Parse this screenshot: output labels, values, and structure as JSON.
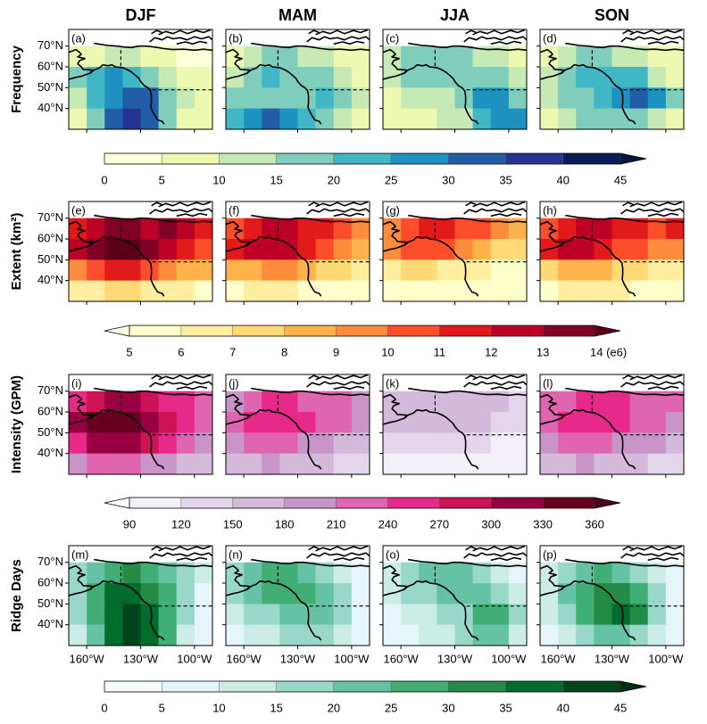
{
  "chart_data": {
    "type": "map-grid",
    "columns": [
      "DJF",
      "MAM",
      "JJA",
      "SON"
    ],
    "rows": [
      "Frequency",
      "Extent (km²)",
      "Intensity (GPM)",
      "Ridge Days"
    ],
    "xlim": [
      -170,
      -90
    ],
    "ylim": [
      30,
      78
    ],
    "xticks": [
      {
        "value": -160,
        "label": "160°W"
      },
      {
        "value": -130,
        "label": "130°W"
      },
      {
        "value": -100,
        "label": "100°W"
      }
    ],
    "yticks": [
      {
        "value": 70,
        "label": "70°N"
      },
      {
        "value": 60,
        "label": "60°N"
      },
      {
        "value": 50,
        "label": "50°N"
      },
      {
        "value": 40,
        "label": "40°N"
      }
    ],
    "lon": [
      -165,
      -155,
      -145,
      -135,
      -125,
      -115,
      -105,
      -95
    ],
    "lat": [
      65,
      55,
      45,
      35
    ],
    "colorbars": [
      {
        "ticks": [
          0,
          5,
          10,
          15,
          20,
          25,
          30,
          35,
          40,
          45
        ],
        "extend": "max",
        "colors": [
          "#ffffd9",
          "#edf8b1",
          "#c7e9b4",
          "#7fcdbb",
          "#41b6c4",
          "#1d91c0",
          "#225ea8",
          "#253494",
          "#081d58"
        ],
        "over": "#061440"
      },
      {
        "ticks": [
          5,
          6,
          7,
          8,
          9,
          10,
          11,
          12,
          13,
          {
            "value": 14,
            "label": "14 (e6)"
          }
        ],
        "extend": "both",
        "colors": [
          "#ffffcc",
          "#ffeda0",
          "#fed976",
          "#feb24c",
          "#fd8d3c",
          "#fc4e2a",
          "#e31a1c",
          "#bd0026",
          "#800026"
        ],
        "under": "#ffffe8",
        "over": "#5c0019"
      },
      {
        "ticks": [
          90,
          120,
          150,
          180,
          210,
          240,
          270,
          300,
          330,
          360
        ],
        "extend": "both",
        "colors": [
          "#f4f0f7",
          "#e3d6ea",
          "#d4b9da",
          "#c994c7",
          "#df65b0",
          "#e7298a",
          "#ce1256",
          "#980043",
          "#67001f"
        ],
        "under": "#ffffff",
        "over": "#4a0016"
      },
      {
        "ticks": [
          0,
          5,
          10,
          15,
          20,
          25,
          30,
          35,
          40,
          45
        ],
        "extend": "max",
        "colors": [
          "#f7fcfd",
          "#e5f5f9",
          "#ccece6",
          "#99d8c9",
          "#66c2a4",
          "#41ae76",
          "#238b45",
          "#006d2c",
          "#00441b"
        ],
        "over": "#002d12"
      }
    ],
    "panels": [
      {
        "label": "(a)",
        "values": [
          [
            5,
            8,
            10,
            10,
            8,
            5,
            3,
            2
          ],
          [
            15,
            22,
            25,
            20,
            15,
            12,
            8,
            5
          ],
          [
            12,
            20,
            28,
            32,
            30,
            18,
            10,
            6
          ],
          [
            8,
            15,
            30,
            35,
            30,
            15,
            8,
            5
          ]
        ]
      },
      {
        "label": "(b)",
        "values": [
          [
            8,
            12,
            15,
            15,
            12,
            10,
            8,
            5
          ],
          [
            12,
            18,
            20,
            18,
            15,
            15,
            12,
            8
          ],
          [
            15,
            18,
            15,
            15,
            18,
            20,
            15,
            10
          ],
          [
            20,
            28,
            30,
            25,
            20,
            15,
            12,
            8
          ]
        ]
      },
      {
        "label": "(c)",
        "values": [
          [
            10,
            15,
            18,
            18,
            15,
            12,
            10,
            5
          ],
          [
            10,
            15,
            15,
            15,
            18,
            18,
            15,
            10
          ],
          [
            8,
            10,
            10,
            12,
            18,
            25,
            25,
            18
          ],
          [
            5,
            8,
            8,
            10,
            12,
            20,
            28,
            25
          ]
        ]
      },
      {
        "label": "(d)",
        "values": [
          [
            8,
            12,
            15,
            15,
            12,
            10,
            8,
            5
          ],
          [
            12,
            18,
            20,
            22,
            22,
            20,
            12,
            8
          ],
          [
            10,
            15,
            18,
            22,
            28,
            30,
            25,
            15
          ],
          [
            8,
            12,
            15,
            15,
            18,
            15,
            10,
            5
          ]
        ]
      },
      {
        "label": "(e)",
        "values": [
          [
            11,
            12,
            13,
            13,
            12,
            13,
            12,
            11
          ],
          [
            12,
            13,
            14,
            14,
            13,
            12,
            11,
            10
          ],
          [
            9,
            10,
            11,
            11,
            10,
            9,
            8,
            8
          ],
          [
            6,
            6,
            7,
            7,
            6,
            6,
            6,
            5
          ]
        ]
      },
      {
        "label": "(f)",
        "values": [
          [
            10,
            11,
            12,
            12,
            11,
            11,
            10,
            9
          ],
          [
            11,
            12,
            12,
            12,
            11,
            10,
            9,
            8
          ],
          [
            8,
            8,
            9,
            9,
            8,
            7,
            7,
            6
          ],
          [
            5,
            6,
            6,
            6,
            5,
            5,
            5,
            5
          ]
        ]
      },
      {
        "label": "(g)",
        "values": [
          [
            9,
            10,
            11,
            11,
            10,
            10,
            9,
            8
          ],
          [
            9,
            10,
            10,
            10,
            9,
            8,
            7,
            7
          ],
          [
            6,
            7,
            7,
            6,
            6,
            6,
            5,
            5
          ],
          [
            5,
            5,
            5,
            5,
            5,
            5,
            5,
            5
          ]
        ]
      },
      {
        "label": "(h)",
        "values": [
          [
            10,
            11,
            12,
            12,
            11,
            11,
            10,
            11
          ],
          [
            11,
            12,
            12,
            11,
            10,
            10,
            9,
            9
          ],
          [
            7,
            8,
            8,
            8,
            7,
            7,
            6,
            6
          ],
          [
            5,
            6,
            6,
            6,
            6,
            5,
            5,
            5
          ]
        ]
      },
      {
        "label": "(i)",
        "values": [
          [
            240,
            270,
            300,
            300,
            280,
            260,
            240,
            220
          ],
          [
            300,
            340,
            350,
            330,
            300,
            270,
            250,
            230
          ],
          [
            260,
            300,
            310,
            300,
            270,
            240,
            210,
            200
          ],
          [
            200,
            220,
            230,
            220,
            200,
            180,
            170,
            160
          ]
        ]
      },
      {
        "label": "(j)",
        "values": [
          [
            200,
            220,
            240,
            240,
            230,
            220,
            210,
            200
          ],
          [
            220,
            250,
            260,
            250,
            240,
            220,
            210,
            190
          ],
          [
            190,
            210,
            220,
            210,
            200,
            180,
            170,
            160
          ],
          [
            150,
            170,
            180,
            170,
            160,
            150,
            140,
            130
          ]
        ]
      },
      {
        "label": "(k)",
        "values": [
          [
            150,
            160,
            170,
            170,
            160,
            150,
            150,
            140
          ],
          [
            150,
            160,
            170,
            165,
            160,
            150,
            140,
            130
          ],
          [
            120,
            130,
            140,
            135,
            130,
            120,
            115,
            110
          ],
          [
            100,
            110,
            115,
            110,
            105,
            100,
            95,
            95
          ]
        ]
      },
      {
        "label": "(l)",
        "values": [
          [
            210,
            230,
            250,
            250,
            240,
            230,
            220,
            210
          ],
          [
            230,
            250,
            260,
            250,
            240,
            230,
            210,
            200
          ],
          [
            190,
            210,
            220,
            210,
            200,
            190,
            180,
            170
          ],
          [
            150,
            170,
            180,
            170,
            160,
            150,
            140,
            140
          ]
        ]
      },
      {
        "label": "(m)",
        "values": [
          [
            15,
            22,
            28,
            30,
            25,
            20,
            15,
            10
          ],
          [
            18,
            28,
            35,
            38,
            32,
            25,
            15,
            8
          ],
          [
            15,
            25,
            38,
            42,
            38,
            28,
            15,
            6
          ],
          [
            10,
            20,
            35,
            40,
            35,
            25,
            12,
            5
          ]
        ]
      },
      {
        "label": "(n)",
        "values": [
          [
            15,
            20,
            25,
            25,
            22,
            18,
            12,
            8
          ],
          [
            15,
            22,
            28,
            28,
            25,
            22,
            15,
            8
          ],
          [
            10,
            15,
            18,
            20,
            22,
            22,
            15,
            8
          ],
          [
            8,
            10,
            12,
            15,
            18,
            18,
            12,
            5
          ]
        ]
      },
      {
        "label": "(o)",
        "values": [
          [
            12,
            18,
            20,
            22,
            20,
            18,
            12,
            8
          ],
          [
            10,
            15,
            18,
            20,
            22,
            22,
            18,
            10
          ],
          [
            8,
            10,
            12,
            15,
            18,
            25,
            28,
            15
          ],
          [
            5,
            8,
            10,
            12,
            15,
            20,
            22,
            10
          ]
        ]
      },
      {
        "label": "(p)",
        "values": [
          [
            12,
            18,
            22,
            25,
            22,
            18,
            12,
            8
          ],
          [
            12,
            20,
            25,
            30,
            30,
            25,
            15,
            8
          ],
          [
            10,
            18,
            25,
            32,
            35,
            30,
            18,
            8
          ],
          [
            8,
            12,
            18,
            22,
            22,
            18,
            10,
            5
          ]
        ]
      }
    ]
  }
}
